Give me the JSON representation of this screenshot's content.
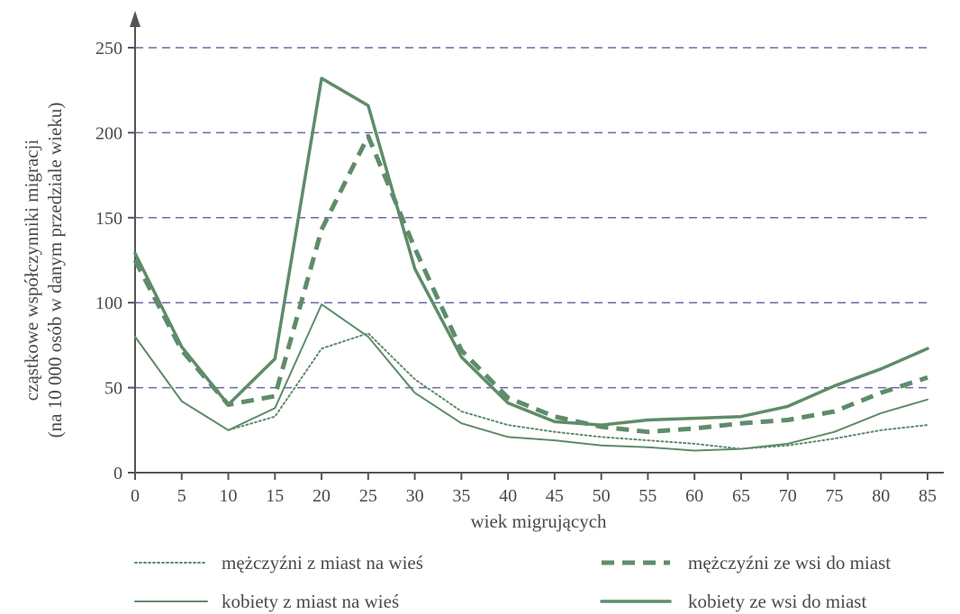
{
  "chart_data": {
    "type": "line",
    "title": "",
    "xlabel": "wiek migrujących",
    "ylabel_line1": "cząstkowe współczynniki migracji",
    "ylabel_line2": "(na 10 000 osób w danym przedziale wieku)",
    "xlim": [
      0,
      85
    ],
    "ylim": [
      0,
      250
    ],
    "x": [
      0,
      5,
      10,
      15,
      20,
      25,
      30,
      35,
      40,
      45,
      50,
      55,
      60,
      65,
      70,
      75,
      80,
      85
    ],
    "x_tick_labels": [
      "0",
      "5",
      "10",
      "15",
      "20",
      "25",
      "30",
      "35",
      "40",
      "45",
      "50",
      "55",
      "60",
      "65",
      "70",
      "75",
      "80",
      "85"
    ],
    "y_ticks": [
      0,
      50,
      100,
      150,
      200,
      250
    ],
    "y_tick_labels": [
      "0",
      "50",
      "100",
      "150",
      "200",
      "250"
    ],
    "grid": "horizontal-dashed",
    "legend_position": "bottom",
    "colors": {
      "line": "#5e8c6a",
      "grid": "#6b6aa8",
      "axis": "#555555"
    },
    "series": [
      {
        "name": "mężczyźni z miast na wieś",
        "style": "dotted",
        "values": [
          80,
          42,
          25,
          33,
          73,
          82,
          55,
          36,
          28,
          24,
          21,
          19,
          17,
          14,
          16,
          20,
          25,
          28
        ]
      },
      {
        "name": "mężczyźni ze wsi do miast",
        "style": "dashed",
        "values": [
          125,
          72,
          40,
          45,
          143,
          198,
          132,
          72,
          44,
          33,
          27,
          24,
          26,
          29,
          31,
          36,
          47,
          56
        ]
      },
      {
        "name": "kobiety z miast na wieś",
        "style": "thin",
        "values": [
          80,
          42,
          25,
          38,
          99,
          80,
          47,
          29,
          21,
          19,
          16,
          15,
          13,
          14,
          17,
          24,
          35,
          43
        ]
      },
      {
        "name": "kobiety ze wsi do miast",
        "style": "thick",
        "values": [
          129,
          74,
          40,
          67,
          232,
          216,
          120,
          68,
          41,
          30,
          28,
          31,
          32,
          33,
          39,
          51,
          61,
          73
        ]
      }
    ]
  }
}
